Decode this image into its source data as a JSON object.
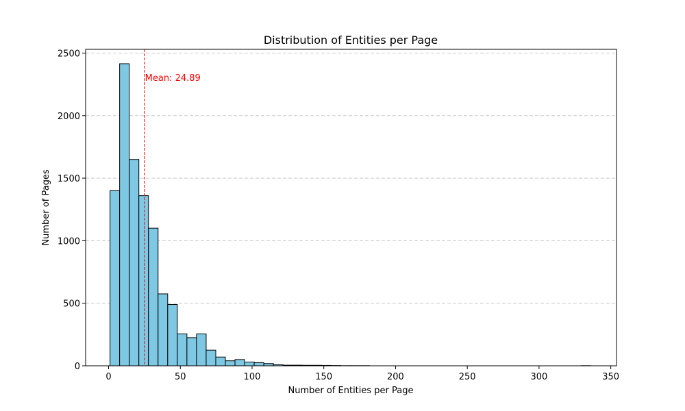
{
  "chart_data": {
    "type": "bar",
    "title": "Distribution of Entities per Page",
    "xlabel": "Number of Entities per Page",
    "ylabel": "Number of Pages",
    "xlim": [
      -16,
      354
    ],
    "ylim": [
      0,
      2530
    ],
    "xticks": [
      0,
      50,
      100,
      150,
      200,
      250,
      300,
      350
    ],
    "yticks": [
      0,
      500,
      1000,
      1500,
      2000,
      2500
    ],
    "grid": "y-dashed",
    "bin_start": 1,
    "bin_width": 6.7,
    "values": [
      1400,
      2415,
      1650,
      1360,
      1100,
      575,
      490,
      255,
      225,
      255,
      125,
      70,
      40,
      50,
      30,
      25,
      18,
      8,
      5,
      5,
      4,
      4,
      3,
      2,
      1,
      1,
      1,
      0,
      0,
      0,
      0,
      0,
      0,
      0,
      0,
      0,
      0,
      0,
      0,
      0,
      0,
      0,
      0,
      0,
      0,
      0,
      0,
      0,
      0,
      1
    ],
    "mean": 24.89,
    "mean_label": "Mean: 24.89",
    "colors": {
      "bar_fill": "#7ec8e3",
      "bar_edge": "#000000",
      "mean_line": "#ff0000"
    }
  }
}
